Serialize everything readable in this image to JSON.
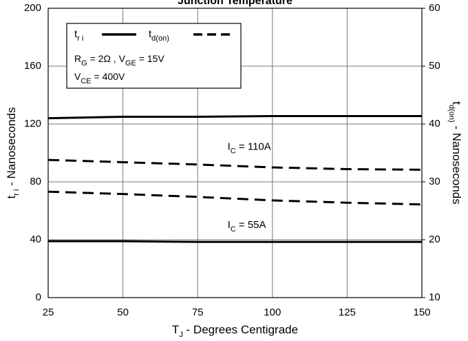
{
  "chart_data": {
    "type": "line",
    "title": "Junction Temperature",
    "x_label": [
      "T",
      "J",
      " - Degrees Centigrade"
    ],
    "y_label": [
      "t",
      "r i",
      " - Nanoseconds"
    ],
    "y2_label": [
      "t",
      "d(on)",
      " - Nanoseconds"
    ],
    "x": [
      25,
      50,
      75,
      100,
      125,
      150
    ],
    "xlim": [
      25,
      150
    ],
    "xticks": [
      25,
      50,
      75,
      100,
      125,
      150
    ],
    "ylim": [
      0,
      200
    ],
    "yticks": [
      0,
      40,
      80,
      120,
      160,
      200
    ],
    "y2lim": [
      10,
      60
    ],
    "y2ticks": [
      10,
      20,
      30,
      40,
      50,
      60
    ],
    "grid": true,
    "series": [
      {
        "name": [
          "t",
          "r i"
        ],
        "color": "#000000",
        "style": "solid",
        "axis": "y",
        "values": [
          124,
          125,
          125,
          125.5,
          125.5,
          125.5
        ]
      },
      {
        "color": "#000000",
        "style": "solid",
        "axis": "y",
        "values": [
          39,
          39,
          38.5,
          38.5,
          38.5,
          38.5
        ]
      },
      {
        "name": [
          "t",
          "d(on)"
        ],
        "color": "#000000",
        "style": "dashed",
        "axis": "y2",
        "values": [
          33.8,
          33.4,
          33.0,
          32.5,
          32.2,
          32.1
        ]
      },
      {
        "color": "#000000",
        "style": "dashed",
        "axis": "y2",
        "values": [
          28.3,
          27.9,
          27.4,
          26.8,
          26.4,
          26.1
        ]
      }
    ],
    "legend_notes": [
      [
        "R",
        "G",
        " = 2Ω ,  V",
        "GE",
        " = 15V"
      ],
      [
        "V",
        "CE",
        " = 400V"
      ]
    ],
    "annotations": [
      {
        "parts": [
          "I",
          "C",
          " = 110A"
        ],
        "x": 85,
        "y": 104
      },
      {
        "parts": [
          "I",
          "C",
          " = 55A"
        ],
        "x": 85,
        "y": 50
      }
    ]
  }
}
